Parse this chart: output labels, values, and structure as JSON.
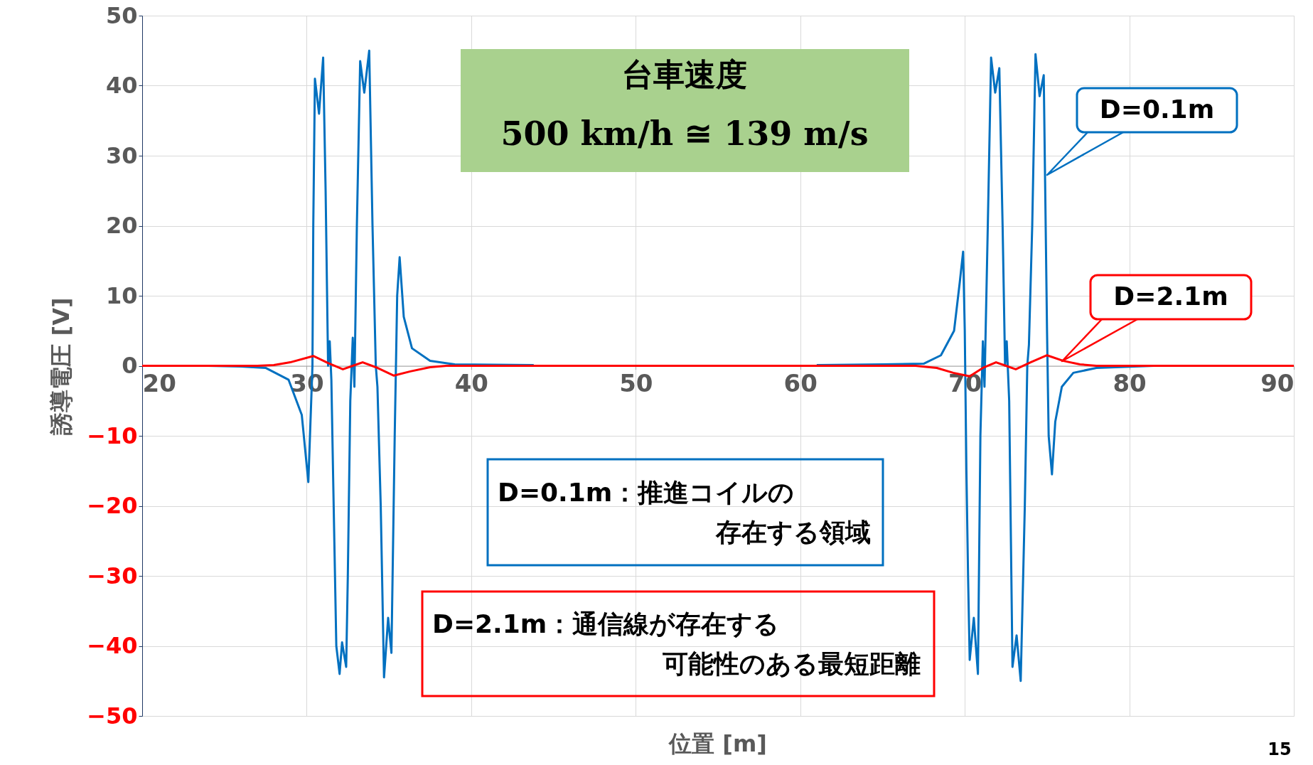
{
  "chart_data": {
    "type": "line",
    "xlabel": "位置 [m]",
    "ylabel": "誘導電圧 [V]",
    "xlim": [
      20,
      90
    ],
    "xticks": [
      20,
      30,
      40,
      50,
      60,
      70,
      80,
      90
    ],
    "ylim": [
      -50,
      50
    ],
    "yticks": [
      -50,
      -40,
      -30,
      -20,
      -10,
      0,
      10,
      20,
      30,
      40,
      50
    ],
    "grid": true,
    "legend": false,
    "line_style": "solid",
    "marker": "none",
    "series": [
      {
        "name": "D=0.1m",
        "color": "#0070c0",
        "x": [
          24,
          26,
          27.5,
          28.9,
          29.7,
          30.1,
          30.2,
          30.35,
          30.4,
          30.5,
          30.75,
          31.0,
          31.15,
          31.3,
          31.4,
          31.5,
          31.6,
          31.8,
          32.0,
          32.15,
          32.4,
          32.5,
          32.65,
          32.8,
          32.9,
          33.05,
          33.25,
          33.5,
          33.8,
          34.0,
          34.2,
          34.3,
          34.5,
          34.7,
          34.95,
          35.15,
          35.35,
          35.5,
          35.65,
          35.9,
          36.4,
          37.5,
          39,
          43.8,
          52,
          61,
          65,
          67.5,
          68.55,
          69.35,
          69.7,
          69.9,
          70.0,
          70.1,
          70.2,
          70.3,
          70.55,
          70.8,
          70.95,
          71.1,
          71.2,
          71.4,
          71.6,
          71.85,
          72.1,
          72.3,
          72.45,
          72.55,
          72.7,
          72.9,
          73.15,
          73.4,
          73.65,
          73.8,
          73.9,
          74.1,
          74.3,
          74.55,
          74.8,
          75.0,
          75.1,
          75.3,
          75.5,
          75.9,
          76.6,
          78.0,
          81.5
        ],
        "values": [
          0,
          -0.1,
          -0.3,
          -2,
          -7,
          -16.6,
          -10,
          0,
          20,
          41,
          36,
          44,
          25,
          0,
          3.5,
          -2,
          -15,
          -40,
          -44,
          -39.5,
          -43,
          -30,
          -5,
          4,
          -3,
          20,
          43.5,
          39,
          45,
          20,
          0,
          -3,
          -20,
          -44.5,
          -36,
          -41,
          -10,
          10,
          15.5,
          7,
          2.5,
          0.7,
          0.2,
          0.1,
          null,
          0.1,
          0.2,
          0.3,
          1.5,
          5,
          12,
          16.3,
          5,
          -15,
          -30,
          -42,
          -36,
          -44,
          -10,
          3.5,
          -3,
          20,
          44,
          39,
          42.5,
          20,
          0,
          3.5,
          -5,
          -43,
          -38.5,
          -45,
          -20,
          0,
          3,
          20,
          44.5,
          38.5,
          41.5,
          5,
          -10,
          -15.5,
          -8,
          -3,
          -1,
          -0.3,
          0
        ]
      },
      {
        "name": "D=2.1m",
        "color": "#ff0000",
        "x": [
          20,
          27,
          28,
          29,
          30.4,
          31.3,
          32.2,
          32.8,
          33.4,
          34.2,
          35.3,
          36.3,
          37.5,
          38.5,
          67,
          68.3,
          69.3,
          70.3,
          71.1,
          71.9,
          72.5,
          73.1,
          74.0,
          75.0,
          76.0,
          77,
          78,
          90
        ],
        "values": [
          0,
          0,
          0.1,
          0.5,
          1.4,
          0.4,
          -0.5,
          0,
          0.5,
          -0.2,
          -1.4,
          -0.8,
          -0.2,
          0,
          0,
          -0.3,
          -1,
          -1.5,
          -0.3,
          0.5,
          0,
          -0.5,
          0.5,
          1.5,
          0.7,
          0.2,
          0,
          0
        ]
      }
    ],
    "annotations": [
      "台車速度",
      "500 km/h ≅  139 m/s",
      "D=0.1m：推進コイルの",
      "存在する領域",
      "D=2.1m：通信線が存在する",
      "可能性のある最短距離",
      "15"
    ]
  }
}
